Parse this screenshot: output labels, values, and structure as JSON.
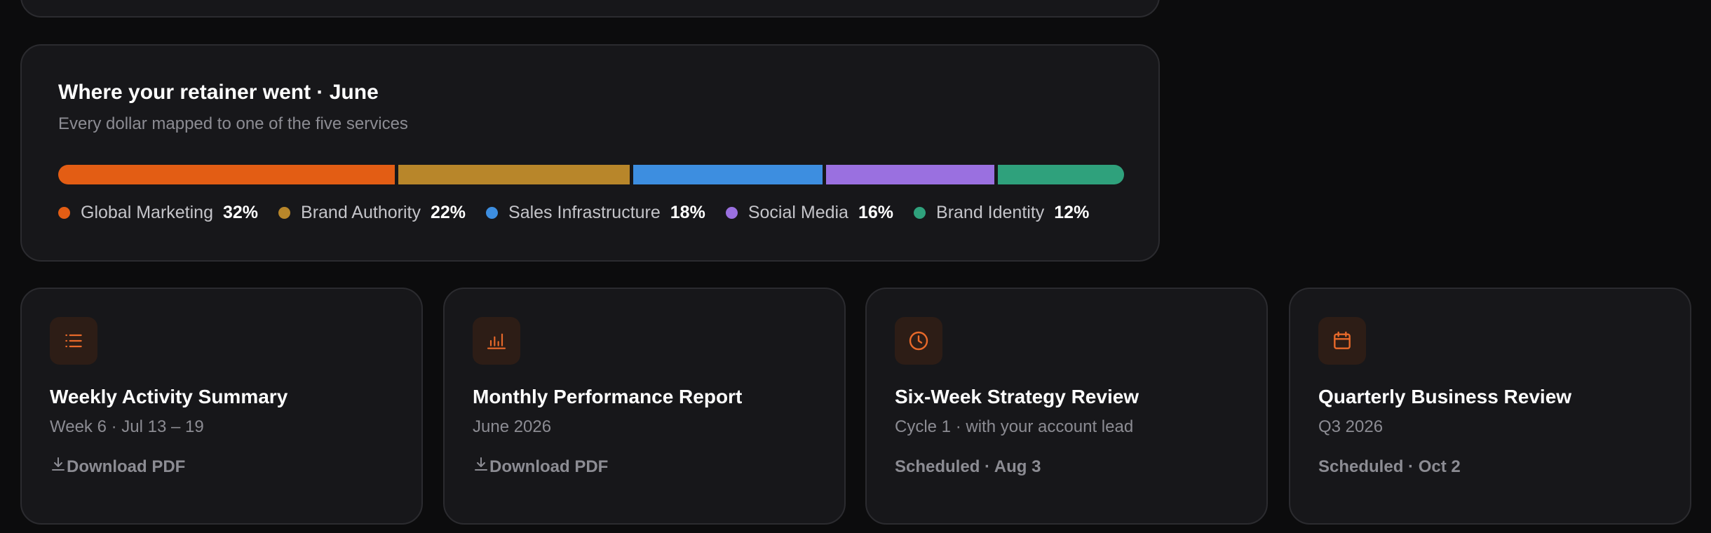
{
  "retainer": {
    "title": "Where your retainer went · June",
    "subtitle": "Every dollar mapped to one of the five services",
    "services": [
      {
        "name": "Global Marketing",
        "pct_label": "32%",
        "value": 32,
        "color": "#e35d14"
      },
      {
        "name": "Brand Authority",
        "pct_label": "22%",
        "value": 22,
        "color": "#b8862a"
      },
      {
        "name": "Sales Infrastructure",
        "pct_label": "18%",
        "value": 18,
        "color": "#3d8ee0"
      },
      {
        "name": "Social Media",
        "pct_label": "16%",
        "value": 16,
        "color": "#9a70e0"
      },
      {
        "name": "Brand Identity",
        "pct_label": "12%",
        "value": 12,
        "color": "#2fa17c"
      }
    ]
  },
  "reports": [
    {
      "icon": "list-icon",
      "title": "Weekly Activity Summary",
      "subtitle": "Week 6 · Jul 13 – 19",
      "action": "Download PDF",
      "action_type": "download"
    },
    {
      "icon": "bar-chart-icon",
      "title": "Monthly Performance Report",
      "subtitle": "June 2026",
      "action": "Download PDF",
      "action_type": "download"
    },
    {
      "icon": "clock-icon",
      "title": "Six-Week Strategy Review",
      "subtitle": "Cycle 1 · with your account lead",
      "action": "Scheduled · Aug 3",
      "action_type": "status"
    },
    {
      "icon": "calendar-icon",
      "title": "Quarterly Business Review",
      "subtitle": "Q3 2026",
      "action": "Scheduled · Oct 2",
      "action_type": "status"
    }
  ],
  "colors": {
    "accent": "#e8692a",
    "card_bg": "#17171a",
    "page_bg": "#0c0c0d"
  }
}
